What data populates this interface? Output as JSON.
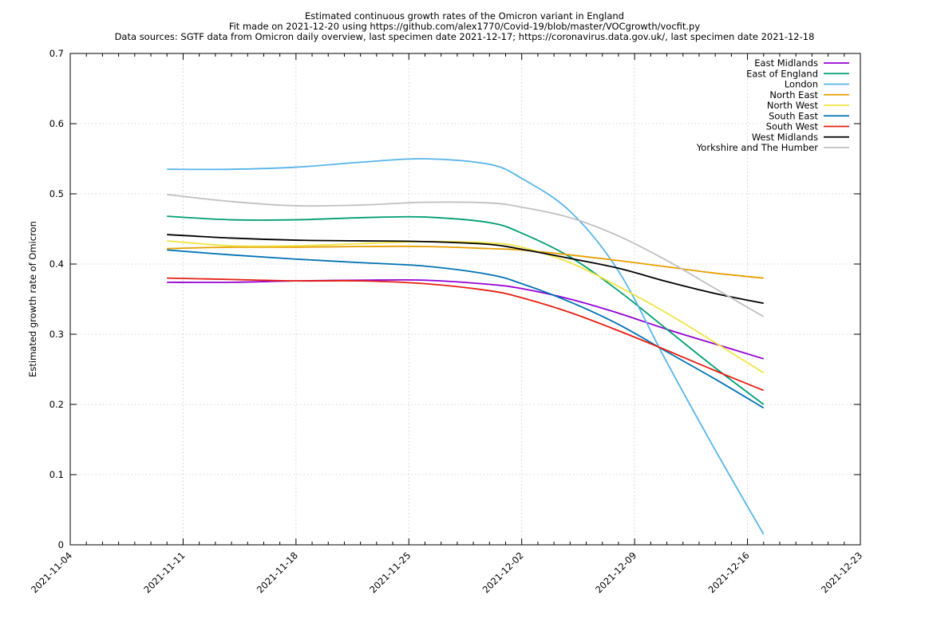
{
  "chart_data": {
    "type": "line",
    "title": "Estimated continuous growth rates of the Omicron variant in England",
    "subtitle": [
      "Fit made on 2021-12-20 using https://github.com/alex1770/Covid-19/blob/master/VOCgrowth/vocfit.py",
      "Data sources: SGTF data from Omicron daily overview, last specimen date 2021-12-17; https://coronavirus.data.gov.uk/, last specimen date 2021-12-18"
    ],
    "xlabel": "",
    "ylabel": "Estimated growth rate of Omicron",
    "xlim": [
      "2021-11-04",
      "2021-12-23"
    ],
    "ylim": [
      0,
      0.7
    ],
    "x_ticks": [
      "2021-11-04",
      "2021-11-11",
      "2021-11-18",
      "2021-11-25",
      "2021-12-02",
      "2021-12-09",
      "2021-12-16",
      "2021-12-23"
    ],
    "y_ticks": [
      "0",
      "0.1",
      "0.2",
      "0.3",
      "0.4",
      "0.5",
      "0.6",
      "0.7"
    ],
    "grid": true,
    "legend_position": "top-right",
    "x": [
      "2021-11-10",
      "2021-11-14",
      "2021-11-18",
      "2021-11-22",
      "2021-11-26",
      "2021-11-30",
      "2021-12-02",
      "2021-12-05",
      "2021-12-08",
      "2021-12-11",
      "2021-12-14",
      "2021-12-17"
    ],
    "series": [
      {
        "name": "East Midlands",
        "color": "#9400d3",
        "values": [
          0.374,
          0.374,
          0.376,
          0.377,
          0.377,
          0.371,
          0.365,
          0.35,
          0.33,
          0.307,
          0.286,
          0.265
        ]
      },
      {
        "name": "East of England",
        "color": "#009e73",
        "values": [
          0.468,
          0.463,
          0.463,
          0.466,
          0.467,
          0.459,
          0.444,
          0.41,
          0.362,
          0.307,
          0.252,
          0.2
        ]
      },
      {
        "name": "London",
        "color": "#56b4e9",
        "values": [
          0.535,
          0.535,
          0.538,
          0.545,
          0.55,
          0.542,
          0.522,
          0.475,
          0.39,
          0.26,
          0.135,
          0.015
        ]
      },
      {
        "name": "North East",
        "color": "#e69f00",
        "values": [
          0.422,
          0.424,
          0.424,
          0.425,
          0.425,
          0.422,
          0.42,
          0.413,
          0.405,
          0.396,
          0.387,
          0.38
        ]
      },
      {
        "name": "North West",
        "color": "#f0e442",
        "values": [
          0.433,
          0.426,
          0.426,
          0.429,
          0.432,
          0.43,
          0.424,
          0.402,
          0.368,
          0.33,
          0.288,
          0.245
        ]
      },
      {
        "name": "South East",
        "color": "#0072b2",
        "values": [
          0.42,
          0.413,
          0.407,
          0.402,
          0.397,
          0.385,
          0.372,
          0.346,
          0.314,
          0.275,
          0.236,
          0.195
        ]
      },
      {
        "name": "South West",
        "color": "#e51e10",
        "values": [
          0.38,
          0.378,
          0.376,
          0.376,
          0.372,
          0.362,
          0.352,
          0.331,
          0.305,
          0.277,
          0.248,
          0.22
        ]
      },
      {
        "name": "West Midlands",
        "color": "#000000",
        "values": [
          0.442,
          0.437,
          0.434,
          0.433,
          0.432,
          0.428,
          0.421,
          0.408,
          0.394,
          0.375,
          0.358,
          0.344
        ]
      },
      {
        "name": "Yorkshire and The Humber",
        "color": "#c0c0c0",
        "values": [
          0.499,
          0.489,
          0.483,
          0.484,
          0.488,
          0.487,
          0.481,
          0.466,
          0.44,
          0.405,
          0.365,
          0.325
        ]
      }
    ]
  }
}
